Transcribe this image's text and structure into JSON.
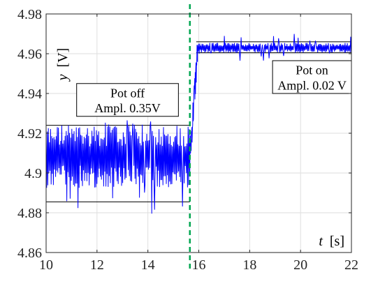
{
  "chart_data": {
    "type": "line",
    "title": "",
    "xlabel": {
      "symbol": "t",
      "unit": "[s]"
    },
    "ylabel": {
      "symbol": "y",
      "unit": "[V]"
    },
    "xlim": [
      10,
      22
    ],
    "ylim": [
      4.86,
      4.98
    ],
    "x_ticks": [
      10,
      12,
      14,
      16,
      18,
      20,
      22
    ],
    "x_tick_labels": [
      "10",
      "12",
      "14",
      "16",
      "18",
      "20",
      "22"
    ],
    "y_ticks": [
      4.86,
      4.88,
      4.9,
      4.92,
      4.94,
      4.96,
      4.98
    ],
    "y_tick_labels": [
      "4.86",
      "4.88",
      "4.9",
      "4.92",
      "4.94",
      "4.96",
      "4.98"
    ],
    "grid": true,
    "series": [
      {
        "color": "#0000ff",
        "segments": [
          {
            "x_start": 10.0,
            "x_end": 15.65,
            "y_low": 4.8925,
            "y_high": 4.9245,
            "spike_low": 4.8775,
            "spike_high": 4.9265
          },
          {
            "x_start": 15.65,
            "x_end": 15.95,
            "y_from": 4.908,
            "y_to": 4.961
          },
          {
            "x_start": 15.95,
            "x_end": 22.0,
            "y_low": 4.9605,
            "y_high": 4.9655,
            "spike_low": 4.9565,
            "spike_high": 4.9705
          }
        ]
      }
    ],
    "envelope_lines": [
      {
        "y": 4.924,
        "x_start": 10.0,
        "x_end": 15.65,
        "color": "#000000"
      },
      {
        "y": 4.8855,
        "x_start": 10.0,
        "x_end": 15.65,
        "color": "#000000"
      },
      {
        "y": 4.966,
        "x_start": 15.9,
        "x_end": 22.0,
        "color": "#000000"
      },
      {
        "y": 4.9605,
        "x_start": 15.9,
        "x_end": 22.0,
        "color": "#000000"
      }
    ],
    "vertical_marker": {
      "x": 15.65,
      "color": "#00a651",
      "style": "dashed"
    },
    "annotations": [
      {
        "id": "pot-off",
        "lines": [
          "Pot off",
          "Ampl. 0.35V"
        ],
        "x_range": [
          11.2,
          15.2
        ],
        "y_range": [
          4.9285,
          4.945
        ]
      },
      {
        "id": "pot-on",
        "lines": [
          "Pot on",
          "Ampl. 0.02 V"
        ],
        "x_range": [
          18.9,
          22.0
        ],
        "y_range": [
          4.94,
          4.9565
        ]
      }
    ]
  }
}
